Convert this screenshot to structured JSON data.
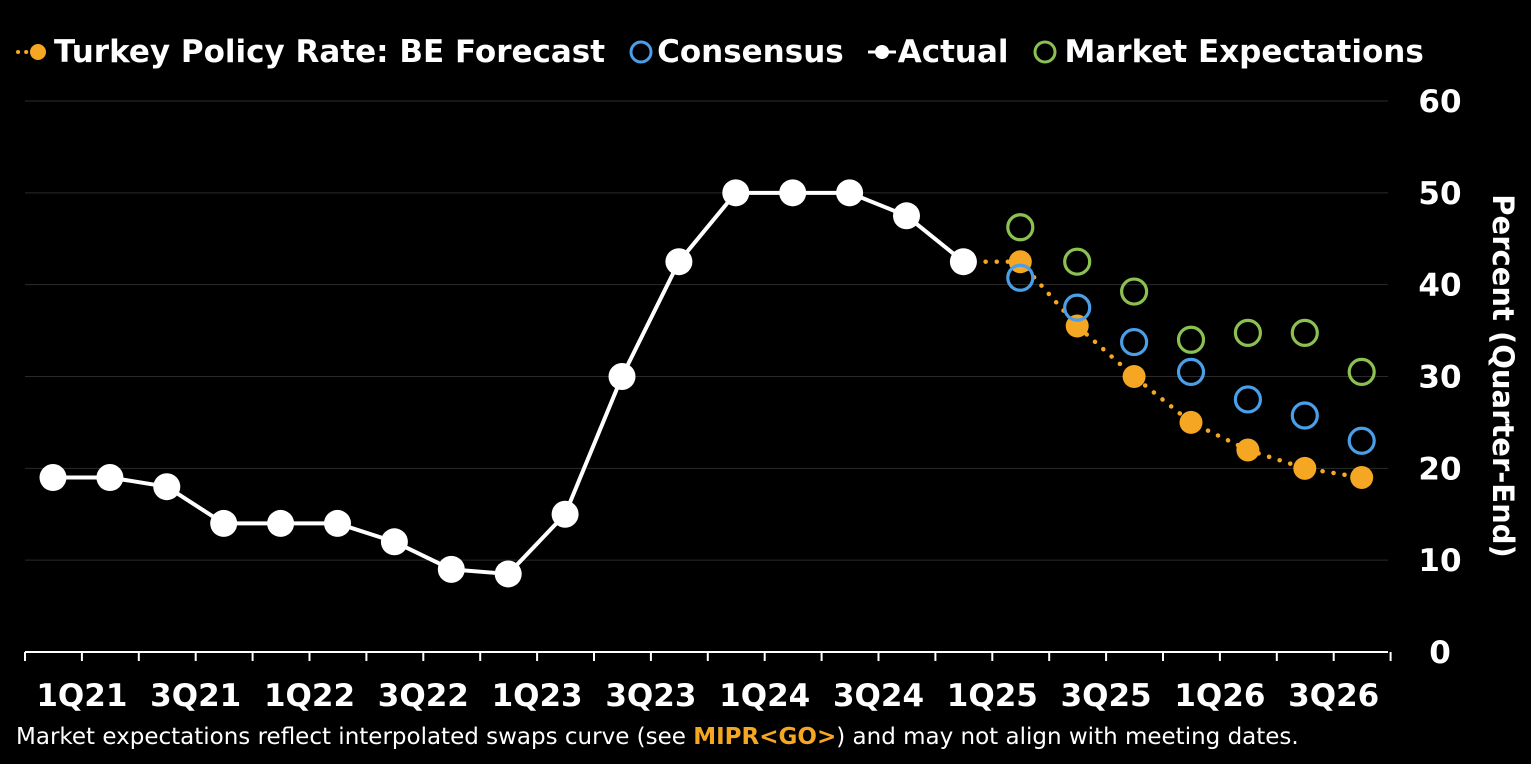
{
  "chart_data": {
    "type": "line",
    "title": "",
    "xlabel": "",
    "ylabel": "Percent (Quarter-End)",
    "ylim": [
      0,
      60
    ],
    "yticks": [
      0,
      10,
      20,
      30,
      40,
      50,
      60
    ],
    "quarters": [
      "1Q21",
      "2Q21",
      "3Q21",
      "4Q21",
      "1Q22",
      "2Q22",
      "3Q22",
      "4Q22",
      "1Q23",
      "2Q23",
      "3Q23",
      "4Q23",
      "1Q24",
      "2Q24",
      "3Q24",
      "4Q24",
      "1Q25",
      "2Q25",
      "3Q25",
      "4Q25",
      "1Q26",
      "2Q26",
      "3Q26",
      "4Q26"
    ],
    "xtick_labels": [
      "1Q21",
      "3Q21",
      "1Q22",
      "3Q22",
      "1Q23",
      "3Q23",
      "1Q24",
      "3Q24",
      "1Q25",
      "3Q25",
      "1Q26",
      "3Q26"
    ],
    "series": [
      {
        "name": "Actual",
        "style": "line-white",
        "x": [
          "1Q21",
          "2Q21",
          "3Q21",
          "4Q21",
          "1Q22",
          "2Q22",
          "3Q22",
          "4Q22",
          "1Q23",
          "2Q23",
          "3Q23",
          "4Q23",
          "1Q24",
          "2Q24",
          "3Q24",
          "4Q24",
          "1Q25"
        ],
        "values": [
          19,
          19,
          18,
          14,
          14,
          14,
          12,
          9,
          8.5,
          15,
          30,
          42.5,
          50,
          50,
          50,
          47.5,
          42.5
        ]
      },
      {
        "name": "Turkey Policy Rate: BE Forecast",
        "style": "dotted-orange",
        "x": [
          "1Q25",
          "2Q25",
          "3Q25",
          "4Q25",
          "1Q26",
          "2Q26",
          "3Q26",
          "4Q26"
        ],
        "values": [
          42.5,
          42.5,
          35.5,
          30,
          25,
          22,
          20,
          19
        ]
      },
      {
        "name": "Consensus",
        "style": "ring-blue",
        "x": [
          "2Q25",
          "3Q25",
          "4Q25",
          "1Q26",
          "2Q26",
          "3Q26",
          "4Q26"
        ],
        "values": [
          40.75,
          37.5,
          33.75,
          30.5,
          27.5,
          25.75,
          23
        ]
      },
      {
        "name": "Market Expectations",
        "style": "ring-green",
        "x": [
          "2Q25",
          "3Q25",
          "4Q25",
          "1Q26",
          "2Q26",
          "3Q26",
          "4Q26"
        ],
        "values": [
          46.25,
          42.5,
          39.25,
          34,
          34.75,
          34.75,
          30.5
        ]
      }
    ]
  },
  "legend": {
    "forecast": "Turkey Policy Rate: BE Forecast",
    "consensus": "Consensus",
    "actual": "Actual",
    "market": "Market Expectations"
  },
  "footnote": {
    "before": "Market expectations reflect interpolated swaps curve (see ",
    "code": "MIPR<GO>",
    "after": ") and may not align with meeting dates."
  },
  "colors": {
    "background": "#000000",
    "actual": "#ffffff",
    "forecast": "#f5a623",
    "consensus": "#4a9fe8",
    "market": "#8cc152",
    "grid": "#2b2b2b"
  }
}
